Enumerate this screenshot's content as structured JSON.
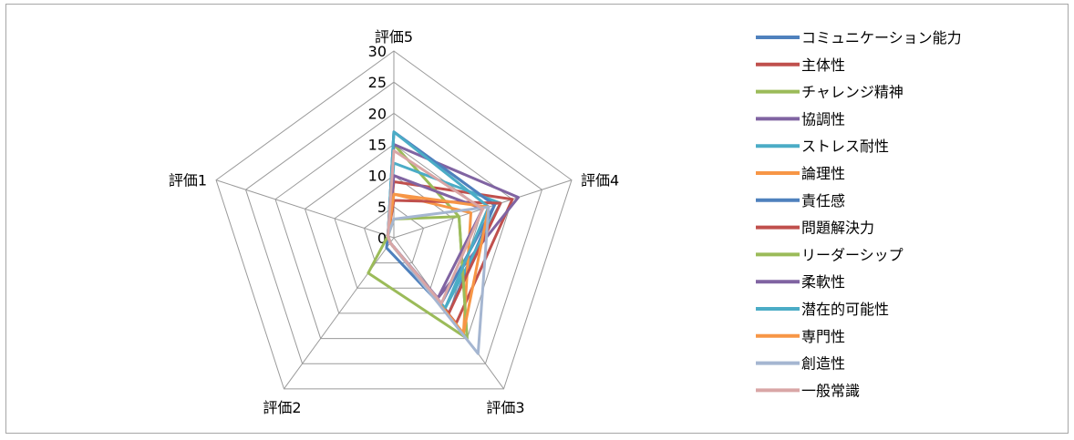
{
  "chart_data": {
    "type": "radar",
    "title": "",
    "axes": [
      "評価1",
      "評価2",
      "評価3",
      "評価4",
      "評価5"
    ],
    "rlim": [
      0,
      30
    ],
    "ticks": [
      0,
      5,
      10,
      15,
      20,
      25,
      30
    ],
    "legend_position": "right",
    "grid": true,
    "series": [
      {
        "name": "コミュニケーション能力",
        "color": "#4f81bd",
        "values": [
          1,
          2,
          15,
          17,
          17
        ]
      },
      {
        "name": "主体性",
        "color": "#c0504d",
        "values": [
          1,
          1,
          17,
          20,
          9
        ]
      },
      {
        "name": "チャレンジ精神",
        "color": "#9bbb59",
        "values": [
          1,
          1,
          20,
          11,
          15
        ]
      },
      {
        "name": "協調性",
        "color": "#8064a2",
        "values": [
          1,
          1,
          12,
          21,
          15
        ]
      },
      {
        "name": "ストレス耐性",
        "color": "#4bacc6",
        "values": [
          1,
          1,
          14,
          18,
          12
        ]
      },
      {
        "name": "論理性",
        "color": "#f79646",
        "values": [
          1,
          1,
          19,
          13,
          7
        ]
      },
      {
        "name": "責任感",
        "color": "#4f81bd",
        "values": [
          1,
          1,
          13,
          17,
          17
        ]
      },
      {
        "name": "問題解決力",
        "color": "#c0504d",
        "values": [
          1,
          1,
          15,
          18,
          6
        ]
      },
      {
        "name": "リーダーシップ",
        "color": "#9bbb59",
        "values": [
          1,
          7,
          20,
          11,
          3
        ]
      },
      {
        "name": "柔軟性",
        "color": "#8064a2",
        "values": [
          1,
          1,
          12,
          15,
          10
        ]
      },
      {
        "name": "潜在的可能性",
        "color": "#4bacc6",
        "values": [
          1,
          1,
          14,
          16,
          17
        ]
      },
      {
        "name": "専門性",
        "color": "#f79646",
        "values": [
          1,
          1,
          19,
          16,
          7
        ]
      },
      {
        "name": "創造性",
        "color": "#a5b6d1",
        "values": [
          1,
          1,
          23,
          16,
          3
        ]
      },
      {
        "name": "一般常識",
        "color": "#d9a6a6",
        "values": [
          1,
          1,
          13,
          15,
          14
        ]
      }
    ]
  }
}
